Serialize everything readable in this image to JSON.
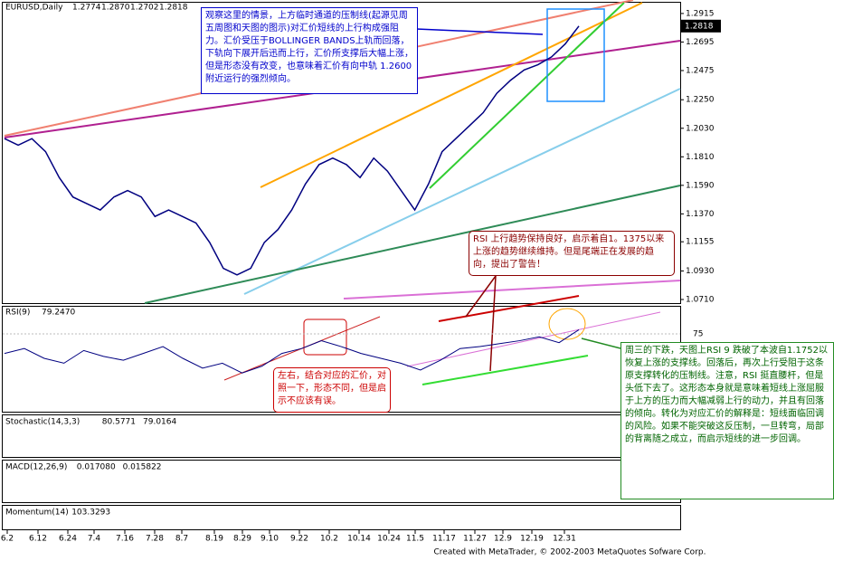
{
  "header": {
    "symbol": "EURUSD,Daily",
    "open": "1.2774",
    "high": "1.2870",
    "low": "1.2702",
    "close": "1.2818"
  },
  "chart_data": {
    "type": "line",
    "color": "#000080",
    "values": [
      1.195,
      1.19,
      1.195,
      1.185,
      1.165,
      1.15,
      1.145,
      1.14,
      1.15,
      1.155,
      1.15,
      1.135,
      1.14,
      1.135,
      1.13,
      1.115,
      1.095,
      1.09,
      1.095,
      1.115,
      1.125,
      1.14,
      1.16,
      1.175,
      1.18,
      1.175,
      1.165,
      1.18,
      1.17,
      1.155,
      1.14,
      1.16,
      1.185,
      1.195,
      1.205,
      1.215,
      1.23,
      1.24,
      1.248,
      1.252,
      1.258,
      1.268,
      1.2818
    ],
    "ylim": [
      1.0675,
      1.2998
    ],
    "yticks": [
      1.2915,
      1.2695,
      1.2475,
      {
        "value": 1.225,
        "label": "1.2250"
      },
      {
        "value": 1.203,
        "label": "1.2030"
      },
      {
        "value": 1.181,
        "label": "1.1810"
      },
      {
        "value": 1.159,
        "label": "1.1590"
      },
      {
        "value": 1.137,
        "label": "1.1370"
      },
      1.1155,
      {
        "value": 1.093,
        "label": "1.0930"
      },
      {
        "value": 1.071,
        "label": "1.0710"
      }
    ],
    "current": 1.2818,
    "xlabels": [
      "6.2",
      "6.12",
      "6.24",
      "7.4",
      "7.16",
      "7.28",
      "8.7",
      "8.19",
      "8.29",
      "9.10",
      "9.22",
      "10.2",
      "10.14",
      "10.24",
      "11.5",
      "11.17",
      "11.27",
      "12.9",
      "12.19",
      "12.31"
    ]
  },
  "rsi": {
    "label": "RSI(9)",
    "reading": "79.2470",
    "color": "#000080",
    "ylim": [
      0,
      100
    ],
    "yticks": [
      75
    ],
    "values": [
      55,
      60,
      50,
      45,
      58,
      52,
      48,
      55,
      62,
      50,
      40,
      45,
      35,
      42,
      55,
      60,
      68,
      62,
      55,
      50,
      45,
      38,
      48,
      60,
      62,
      65,
      68,
      72,
      66,
      79.247
    ]
  },
  "indicators": [
    {
      "label": "Stochastic(14,3,3)",
      "readings": [
        "80.5771",
        "79.0164"
      ]
    },
    {
      "label": "MACD(12,26,9)",
      "readings": [
        "0.017080",
        "0.015822"
      ]
    },
    {
      "label": "Momentum(14)",
      "readings": [
        "103.3293"
      ]
    }
  ],
  "notes": [
    "观察这里的情景，上方临时通道的压制线(起源见周五周图和天图的图示)对汇价短线的上行构成强阻力。汇价受压于BOLLINGER BANDS上轨而回落，下轨向下展开后迅而上行，汇价所支撑后大幅上涨，但是形态没有改变，也意味着汇价有向中轨 1.2600 附近运行的强烈倾向。",
    "RSI 上行趋势保持良好，启示着自1。1375以来上涨的趋势继续维持。但是尾端正在发展的趋向，提出了警告！",
    "左右，结合对应的汇价，对照一下，形态不同，但是启示不应该有误。",
    "周三的下跌，天图上RSI 9 跌破了本波自1.1752以恢复上涨的支撑线。回落后，再次上行受阻于这条原支撑转化的压制线。注意，RSI 挺直腰杆，但是头低下去了。这形态本身就是意味着短线上涨屈服于上方的压力而大幅减弱上行的动力，并且有回落的倾向。转化为对应汇价的解释是：短线面临回调的风险。如果不能突破这反压制，一旦转弯，局部的背离随之成立，而启示短线的进一步回调。"
  ],
  "footer": "Created with MetaTrader, © 2002-2003 MetaQuotes Sofware Corp."
}
